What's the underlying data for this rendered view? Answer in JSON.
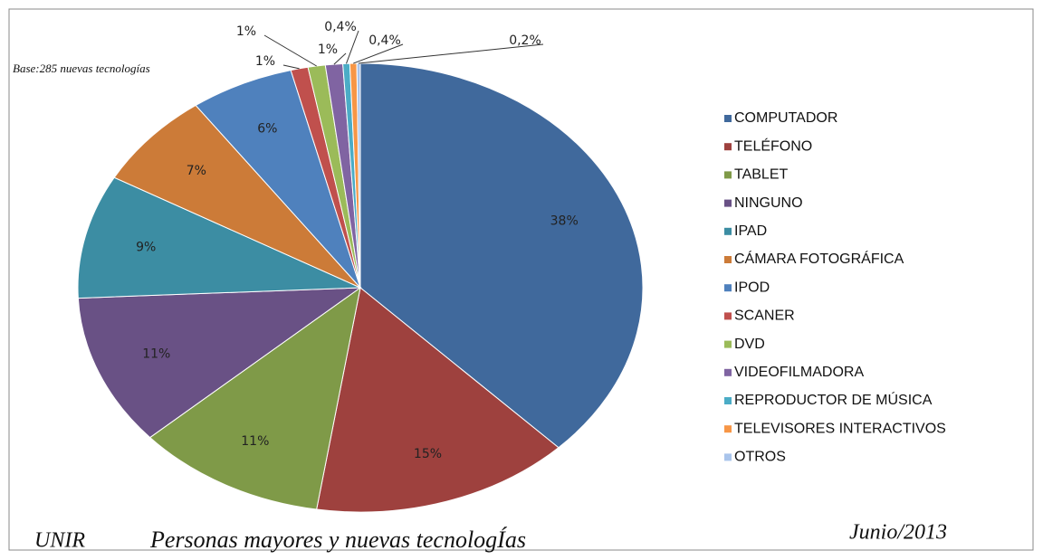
{
  "chart_data": {
    "type": "pie",
    "subtitle": "Base:285 nuevas tecnologías",
    "footer_left": "UNIR",
    "footer_title": "Personas mayores y nuevas tecnologÍas",
    "footer_date": "Junio/2013",
    "categories": [
      "COMPUTADOR",
      "TELÉFONO",
      "TABLET",
      "NINGUNO",
      "IPAD",
      "CÁMARA FOTOGRÁFICA",
      "IPOD",
      "SCANER",
      "DVD",
      "VIDEOFILMADORA",
      "REPRODUCTOR DE MÚSICA",
      "TELEVISORES INTERACTIVOS",
      "OTROS"
    ],
    "values": [
      38,
      15,
      11,
      11,
      9,
      7,
      6,
      1,
      1,
      1,
      0.4,
      0.4,
      0.2
    ],
    "value_labels": [
      "38%",
      "15%",
      "11%",
      "11%",
      "9%",
      "7%",
      "6%",
      "1%",
      "1%",
      "1%",
      "0,4%",
      "0,4%",
      "0,2%"
    ],
    "colors": [
      "#40699c",
      "#9e413e",
      "#7f9a48",
      "#695185",
      "#3c8da3",
      "#cc7b38",
      "#4f81bd",
      "#c0504d",
      "#9bbb59",
      "#8064a2",
      "#4bacc6",
      "#f79646",
      "#a9c4eb"
    ],
    "legend": "right"
  }
}
